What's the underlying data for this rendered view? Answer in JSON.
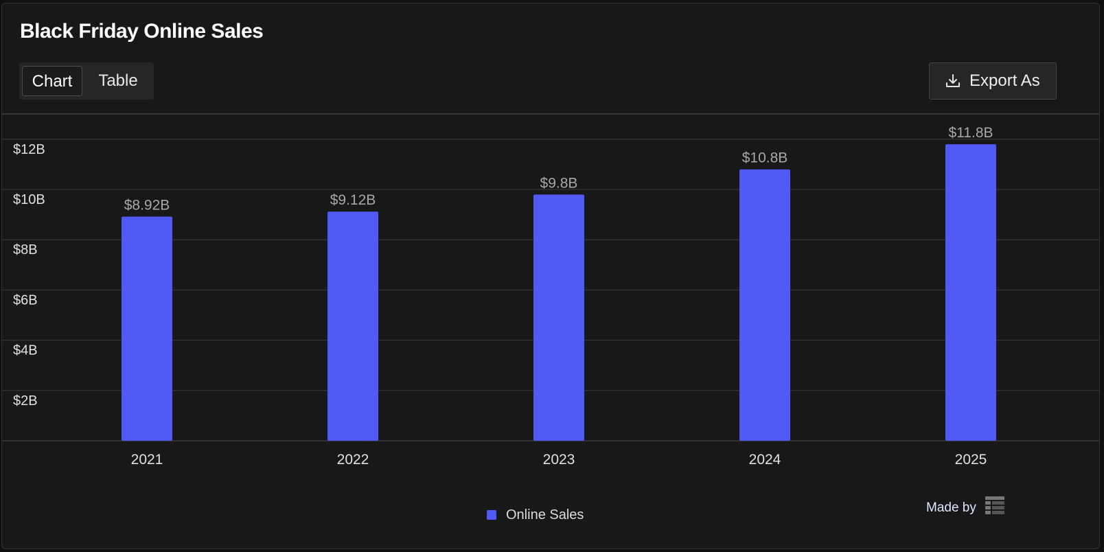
{
  "header": {
    "title": "Black Friday Online Sales"
  },
  "view_toggle": {
    "options": [
      "Chart",
      "Table"
    ],
    "selected": "Chart"
  },
  "toolbar": {
    "export_label": "Export As",
    "export_icon": "download-icon"
  },
  "footer": {
    "made_by_label": "Made by",
    "logo_icon": "grid-logo-icon"
  },
  "colors": {
    "bar": "#525af6",
    "background": "#181818",
    "grid": "#3a3a3a"
  },
  "chart_data": {
    "type": "bar",
    "title": "Black Friday Online Sales",
    "categories": [
      "2021",
      "2022",
      "2023",
      "2024",
      "2025"
    ],
    "series": [
      {
        "name": "Online Sales",
        "values": [
          8.92,
          9.12,
          9.8,
          10.8,
          11.8
        ],
        "labels": [
          "$8.92B",
          "$9.12B",
          "$9.8B",
          "$10.8B",
          "$11.8B"
        ]
      }
    ],
    "y_ticks": [
      2,
      4,
      6,
      8,
      10,
      12
    ],
    "y_tick_labels": [
      "$2B",
      "$4B",
      "$6B",
      "$8B",
      "$10B",
      "$12B"
    ],
    "ylim": [
      0,
      13
    ],
    "grid": true,
    "legend_position": "bottom-center"
  }
}
